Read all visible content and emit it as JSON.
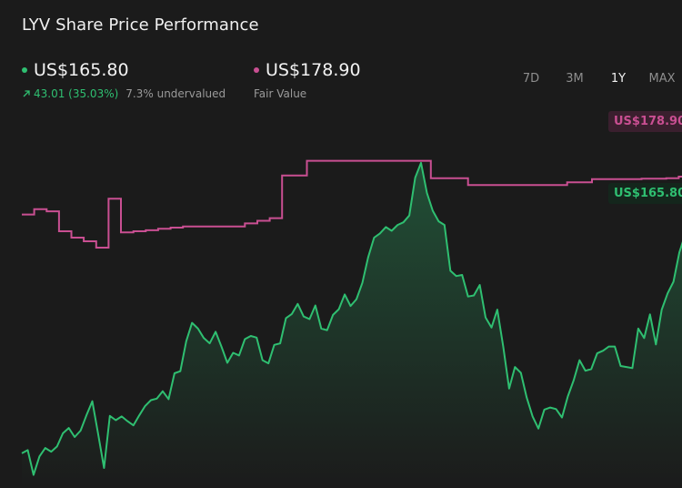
{
  "title": "LYV Share Price Performance",
  "price": {
    "label": "US$165.80",
    "change": "43.01 (35.03%)",
    "valuation": "7.3% undervalued",
    "color": "#2fbf71"
  },
  "fair_value": {
    "label": "US$178.90",
    "caption": "Fair Value",
    "color": "#c94f92"
  },
  "tabs": [
    {
      "label": "7D",
      "active": false
    },
    {
      "label": "3M",
      "active": false
    },
    {
      "label": "1Y",
      "active": true
    },
    {
      "label": "MAX",
      "active": false
    }
  ],
  "chart_data": {
    "type": "line",
    "title": "LYV Share Price Performance",
    "range": "1Y",
    "ylim": [
      118,
      190
    ],
    "grid": false,
    "legend": "top-left",
    "end_tags": [
      {
        "label": "US$165.80",
        "value": 165.8,
        "color": "#2fbf71"
      },
      {
        "label": "US$178.90",
        "value": 178.9,
        "color": "#c94f92"
      }
    ],
    "series": [
      {
        "name": "Share Price",
        "color": "#2fbf71",
        "values": [
          124.6,
          125.2,
          120.5,
          124.0,
          125.6,
          124.9,
          125.9,
          128.4,
          129.4,
          127.7,
          128.9,
          131.8,
          134.5,
          128.3,
          121.8,
          131.7,
          130.9,
          131.6,
          130.7,
          129.9,
          131.8,
          133.6,
          134.7,
          135.0,
          136.4,
          134.9,
          139.8,
          140.2,
          145.9,
          149.4,
          148.3,
          146.5,
          145.5,
          147.7,
          144.9,
          141.8,
          143.7,
          143.2,
          146.3,
          146.9,
          146.6,
          142.3,
          141.7,
          145.2,
          145.5,
          150.3,
          151.1,
          153.0,
          150.6,
          150.1,
          152.7,
          148.3,
          148.0,
          150.9,
          152.0,
          154.8,
          152.6,
          153.9,
          157.0,
          161.9,
          165.6,
          166.4,
          167.6,
          166.9,
          168.0,
          168.5,
          169.8,
          177.0,
          179.8,
          174.1,
          170.7,
          168.7,
          168.0,
          159.3,
          158.3,
          158.5,
          154.4,
          154.6,
          156.6,
          150.4,
          148.5,
          151.9,
          144.9,
          136.9,
          141.0,
          139.9,
          135.2,
          131.6,
          129.3,
          132.9,
          133.3,
          133.0,
          131.4,
          135.4,
          138.5,
          142.3,
          140.3,
          140.6,
          143.6,
          144.1,
          144.9,
          144.9,
          141.2,
          141.0,
          140.8,
          148.3,
          146.5,
          151.0,
          145.3,
          151.9,
          155.0,
          157.2,
          162.8,
          166.2,
          165.8
        ]
      },
      {
        "name": "Fair Value",
        "color": "#c94f92",
        "values": [
          170.0,
          171.0,
          170.6,
          166.8,
          165.6,
          164.9,
          163.7,
          173.0,
          166.6,
          166.8,
          167.0,
          167.3,
          167.5,
          167.7,
          167.7,
          167.7,
          167.7,
          167.7,
          168.3,
          168.8,
          169.3,
          177.4,
          177.4,
          180.2,
          180.2,
          180.2,
          180.2,
          180.2,
          180.2,
          180.2,
          180.2,
          180.2,
          180.2,
          176.9,
          176.9,
          176.9,
          175.6,
          175.6,
          175.6,
          175.6,
          175.6,
          175.6,
          175.6,
          175.6,
          176.1,
          176.1,
          176.7,
          176.7,
          176.7,
          176.7,
          176.8,
          176.8,
          176.9,
          177.2,
          178.9
        ]
      }
    ]
  }
}
